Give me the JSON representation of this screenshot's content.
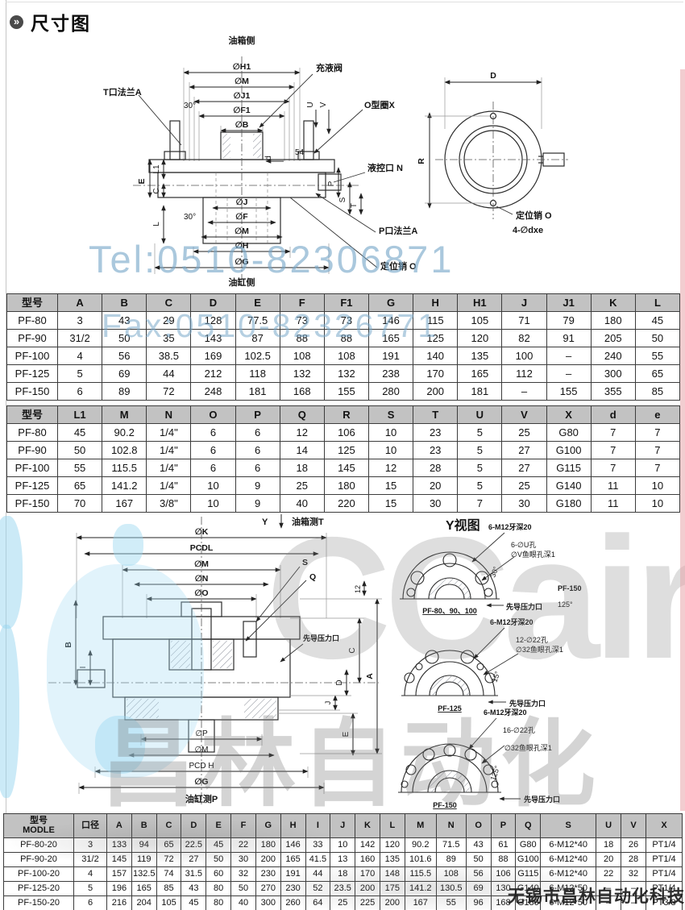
{
  "page": {
    "title": "尺寸图"
  },
  "watermarks": {
    "tel": "Tel:0510-82306871",
    "fax": "Fax:0510-82326771",
    "logo_latin": "CCair",
    "logo_cn": "昌林自动化",
    "company": "无锡市昌林自动化科技"
  },
  "diagram_top": {
    "tank_side": "油箱侧",
    "cyl_side": "油缸侧",
    "dims_top": [
      "∅H1",
      "∅M",
      "∅J1",
      "∅F1",
      "∅B"
    ],
    "dims_bottom": [
      "∅J",
      "∅F",
      "∅M",
      "∅H",
      "∅G"
    ],
    "dim_e": "E",
    "dim_l1": "L1",
    "dim_c": "C",
    "dim_l": "L",
    "dim_u": "U",
    "dim_v": "V",
    "dim_54": "54",
    "dim_d_small": "d",
    "dim_p": "P",
    "dim_s": "S",
    "dim_t": "T",
    "angle_top": "30°",
    "angle_bottom": "30°",
    "callout_t_flange": "T口法兰A",
    "callout_fill_valve": "充液阀",
    "callout_oring": "O型圈X",
    "callout_pilot": "液控口 N",
    "callout_p_flange": "P口法兰A",
    "callout_pin": "定位销 O",
    "view": {
      "dim_d": "D",
      "dim_r": "R",
      "pin": "定位销 O",
      "holes": "4-∅dxe"
    }
  },
  "table1": {
    "headers": [
      "型号",
      "A",
      "B",
      "C",
      "D",
      "E",
      "F",
      "F1",
      "G",
      "H",
      "H1",
      "J",
      "J1",
      "K",
      "L"
    ],
    "rows": [
      [
        "PF-80",
        "3",
        "43",
        "29",
        "128",
        "77.5",
        "73",
        "73",
        "146",
        "115",
        "105",
        "71",
        "79",
        "180",
        "45"
      ],
      [
        "PF-90",
        "31/2",
        "50",
        "35",
        "143",
        "87",
        "88",
        "88",
        "165",
        "125",
        "120",
        "82",
        "91",
        "205",
        "50"
      ],
      [
        "PF-100",
        "4",
        "56",
        "38.5",
        "169",
        "102.5",
        "108",
        "108",
        "191",
        "140",
        "135",
        "100",
        "–",
        "240",
        "55"
      ],
      [
        "PF-125",
        "5",
        "69",
        "44",
        "212",
        "118",
        "132",
        "132",
        "238",
        "170",
        "165",
        "112",
        "–",
        "300",
        "65"
      ],
      [
        "PF-150",
        "6",
        "89",
        "72",
        "248",
        "181",
        "168",
        "155",
        "280",
        "200",
        "181",
        "–",
        "155",
        "355",
        "85"
      ]
    ]
  },
  "table2": {
    "headers": [
      "型号",
      "L1",
      "M",
      "N",
      "O",
      "P",
      "Q",
      "R",
      "S",
      "T",
      "U",
      "V",
      "X",
      "d",
      "e"
    ],
    "rows": [
      [
        "PF-80",
        "45",
        "90.2",
        "1/4\"",
        "6",
        "6",
        "12",
        "106",
        "10",
        "23",
        "5",
        "25",
        "G80",
        "7",
        "7"
      ],
      [
        "PF-90",
        "50",
        "102.8",
        "1/4\"",
        "6",
        "6",
        "14",
        "125",
        "10",
        "23",
        "5",
        "27",
        "G100",
        "7",
        "7"
      ],
      [
        "PF-100",
        "55",
        "115.5",
        "1/4\"",
        "6",
        "6",
        "18",
        "145",
        "12",
        "28",
        "5",
        "27",
        "G115",
        "7",
        "7"
      ],
      [
        "PF-125",
        "65",
        "141.2",
        "1/4\"",
        "10",
        "9",
        "25",
        "180",
        "15",
        "20",
        "5",
        "25",
        "G140",
        "11",
        "10"
      ],
      [
        "PF-150",
        "70",
        "167",
        "3/8\"",
        "10",
        "9",
        "40",
        "220",
        "15",
        "30",
        "7",
        "30",
        "G180",
        "11",
        "10"
      ]
    ]
  },
  "diagram_mid": {
    "y_label": "Y",
    "tank_side": "油箱测T",
    "cyl_side": "油缸测P",
    "dims_top": [
      "∅K",
      "PCDL",
      "∅M",
      "∅N",
      "∅O"
    ],
    "dims_bottom": [
      "∅P",
      "∅M",
      "PCD H",
      "∅G"
    ],
    "dim_b": "B",
    "dim_i": "I",
    "dim_12": "12",
    "dim_a": "A",
    "dim_c": "C",
    "dim_d": "D",
    "dim_j": "J",
    "dim_e": "E",
    "label_s": "S",
    "label_q": "Q",
    "pilot": "先导压力口",
    "y_view_title": "Y视图",
    "views": [
      {
        "name": "PF-80、90、100",
        "ann1": "6-M12牙深20",
        "ann2": "6-∅U孔",
        "ann3": "∅V鱼眼孔深1",
        "pilot": "先导压力口",
        "note1": "PF-150",
        "note2": "125°",
        "angle": "30°"
      },
      {
        "name": "PF-125",
        "ann1": "6-M12牙深20",
        "ann2": "12-∅22孔",
        "ann3": "∅32鱼眼孔深1",
        "pilot": "先导压力口",
        "angle": "15°"
      },
      {
        "name": "PF-150",
        "ann1": "6-M12牙深20",
        "ann2": "16-∅22孔",
        "ann3": "∅32鱼眼孔深1",
        "pilot": "先导压力口",
        "angle": "125°"
      }
    ]
  },
  "table3": {
    "headers": [
      "型号\nMODLE",
      "口径",
      "A",
      "B",
      "C",
      "D",
      "E",
      "F",
      "G",
      "H",
      "I",
      "J",
      "K",
      "L",
      "M",
      "N",
      "O",
      "P",
      "Q",
      "S",
      "U",
      "V",
      "X"
    ],
    "rows": [
      [
        "PF-80-20",
        "3",
        "133",
        "94",
        "65",
        "22.5",
        "45",
        "22",
        "180",
        "146",
        "33",
        "10",
        "142",
        "120",
        "90.2",
        "71.5",
        "43",
        "61",
        "G80",
        "6-M12*40",
        "18",
        "26",
        "PT1/4"
      ],
      [
        "PF-90-20",
        "31/2",
        "145",
        "119",
        "72",
        "27",
        "50",
        "30",
        "200",
        "165",
        "41.5",
        "13",
        "160",
        "135",
        "101.6",
        "89",
        "50",
        "88",
        "G100",
        "6-M12*40",
        "20",
        "28",
        "PT1/4"
      ],
      [
        "PF-100-20",
        "4",
        "157",
        "132.5",
        "74",
        "31.5",
        "60",
        "32",
        "230",
        "191",
        "44",
        "18",
        "170",
        "148",
        "115.5",
        "108",
        "56",
        "106",
        "G115",
        "6-M12*40",
        "22",
        "32",
        "PT1/4"
      ],
      [
        "PF-125-20",
        "5",
        "196",
        "165",
        "85",
        "43",
        "80",
        "50",
        "270",
        "230",
        "52",
        "23.5",
        "200",
        "175",
        "141.2",
        "130.5",
        "69",
        "130",
        "G140",
        "6-M12*50",
        "–",
        "–",
        "PT1/4"
      ],
      [
        "PF-150-20",
        "6",
        "216",
        "204",
        "105",
        "45",
        "80",
        "40",
        "300",
        "260",
        "64",
        "25",
        "225",
        "200",
        "167",
        "55",
        "96",
        "168",
        "G180",
        "6-M12*50",
        "–",
        "–",
        "PT3/8"
      ]
    ]
  }
}
